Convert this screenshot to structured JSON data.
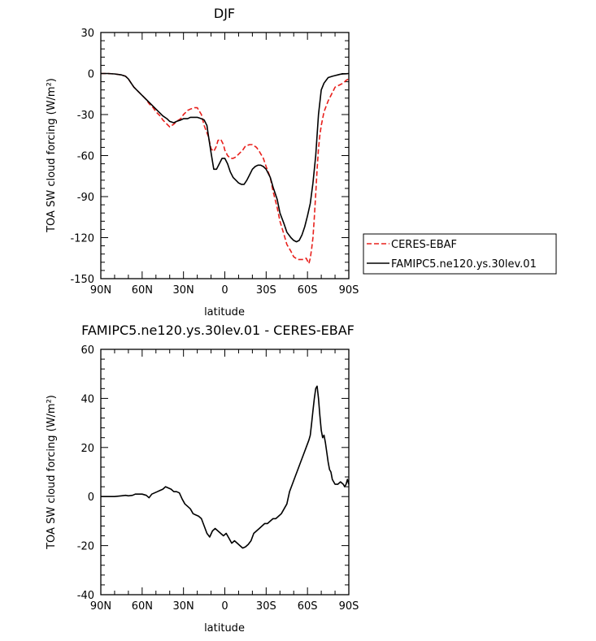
{
  "chart_data": [
    {
      "type": "line",
      "title": "DJF",
      "xlabel": "latitude",
      "ylabel": "TOA SW cloud forcing (W/m²)",
      "xlim": [
        90,
        -90
      ],
      "ylim": [
        -150,
        30
      ],
      "x_tick_values": [
        90,
        60,
        30,
        0,
        -30,
        -60,
        -90
      ],
      "x_tick_labels": [
        "90N",
        "60N",
        "30N",
        "0",
        "30S",
        "60S",
        "90S"
      ],
      "y_tick_values": [
        30,
        0,
        -30,
        -60,
        -90,
        -120,
        -150
      ],
      "y_tick_labels": [
        "30",
        "0",
        "-30",
        "-60",
        "-90",
        "-120",
        "-150"
      ],
      "legend_position": "right",
      "series": [
        {
          "name": "CERES-EBAF",
          "color": "#e8201c",
          "dash": "dashed",
          "x": [
            90,
            85,
            80,
            75,
            72,
            70,
            68,
            66,
            63,
            60,
            57,
            55,
            52,
            50,
            47,
            45,
            42,
            40,
            37,
            35,
            32,
            30,
            27,
            25,
            22,
            20,
            17,
            15,
            12,
            10,
            8,
            6,
            5,
            3,
            1,
            0,
            -2,
            -4,
            -6,
            -8,
            -10,
            -13,
            -15,
            -18,
            -20,
            -23,
            -25,
            -28,
            -30,
            -33,
            -35,
            -38,
            -40,
            -43,
            -45,
            -48,
            -50,
            -53,
            -55,
            -57,
            -59,
            -60,
            -61,
            -62,
            -63,
            -64,
            -65,
            -66,
            -67,
            -68,
            -69,
            -70,
            -72,
            -75,
            -78,
            -80,
            -82,
            -84,
            -86,
            -88,
            -90
          ],
          "y": [
            0,
            0,
            -0.3,
            -1,
            -2,
            -4,
            -7,
            -10,
            -13,
            -16,
            -19,
            -22,
            -25,
            -28,
            -31,
            -34,
            -37,
            -39,
            -37,
            -35,
            -33,
            -30,
            -27,
            -26,
            -25,
            -25,
            -30,
            -38,
            -46,
            -55,
            -57,
            -53,
            -49,
            -48,
            -52,
            -56,
            -60,
            -62,
            -62,
            -61,
            -59,
            -56,
            -53,
            -52,
            -52,
            -54,
            -57,
            -62,
            -68,
            -76,
            -86,
            -98,
            -108,
            -118,
            -125,
            -130,
            -134,
            -136,
            -136,
            -136,
            -135,
            -137,
            -139,
            -135,
            -128,
            -120,
            -105,
            -88,
            -70,
            -55,
            -45,
            -38,
            -28,
            -20,
            -14,
            -10,
            -9,
            -8,
            -7,
            -5,
            -4
          ]
        },
        {
          "name": "FAMIPC5.ne120.ys.30lev.01",
          "color": "#000000",
          "dash": "solid",
          "x": [
            90,
            85,
            80,
            75,
            72,
            70,
            68,
            66,
            63,
            60,
            57,
            55,
            52,
            50,
            47,
            45,
            42,
            40,
            37,
            35,
            32,
            30,
            27,
            25,
            22,
            20,
            17,
            15,
            13,
            12,
            10,
            8,
            6,
            4,
            2,
            0,
            -2,
            -4,
            -6,
            -8,
            -10,
            -12,
            -14,
            -16,
            -18,
            -20,
            -22,
            -24,
            -26,
            -28,
            -30,
            -33,
            -35,
            -38,
            -40,
            -43,
            -45,
            -48,
            -50,
            -52,
            -54,
            -56,
            -58,
            -60,
            -62,
            -64,
            -66,
            -68,
            -70,
            -72,
            -75,
            -78,
            -80,
            -82,
            -84,
            -86,
            -88,
            -90
          ],
          "y": [
            0,
            0,
            -0.3,
            -1,
            -2,
            -4,
            -7,
            -10,
            -13,
            -16,
            -19,
            -21,
            -24,
            -26,
            -29,
            -31,
            -33,
            -35,
            -36,
            -35,
            -34,
            -33,
            -33,
            -32,
            -32,
            -32,
            -33,
            -34,
            -38,
            -45,
            -58,
            -70,
            -70,
            -66,
            -62,
            -62,
            -66,
            -72,
            -76,
            -78,
            -80,
            -81,
            -81,
            -78,
            -74,
            -70,
            -68,
            -67,
            -67,
            -68,
            -70,
            -76,
            -83,
            -92,
            -102,
            -110,
            -116,
            -120,
            -122,
            -123,
            -122,
            -118,
            -112,
            -104,
            -95,
            -80,
            -60,
            -30,
            -12,
            -7,
            -3,
            -2,
            -1.5,
            -1,
            -0.5,
            -0.3,
            -0.2,
            0
          ]
        }
      ]
    },
    {
      "type": "line",
      "title": "FAMIPC5.ne120.ys.30lev.01 - CERES-EBAF",
      "xlabel": "latitude",
      "ylabel": "TOA SW cloud forcing (W/m²)",
      "xlim": [
        90,
        -90
      ],
      "ylim": [
        -40,
        60
      ],
      "x_tick_values": [
        90,
        60,
        30,
        0,
        -30,
        -60,
        -90
      ],
      "x_tick_labels": [
        "90N",
        "60N",
        "30N",
        "0",
        "30S",
        "60S",
        "90S"
      ],
      "y_tick_values": [
        60,
        40,
        20,
        0,
        -20,
        -40
      ],
      "y_tick_labels": [
        "60",
        "40",
        "20",
        "0",
        "-20",
        "-40"
      ],
      "series": [
        {
          "color": "#000000",
          "dash": "solid",
          "x": [
            90,
            85,
            80,
            75,
            72,
            70,
            67,
            65,
            62,
            60,
            57,
            55,
            53,
            51,
            49,
            47,
            45,
            43,
            41,
            39,
            37,
            35,
            33,
            31,
            29,
            27,
            25,
            23,
            21,
            19,
            17,
            15,
            13,
            11,
            9,
            7,
            5,
            3,
            1,
            -1,
            -3,
            -5,
            -7,
            -9,
            -11,
            -13,
            -15,
            -17,
            -19,
            -21,
            -23,
            -25,
            -27,
            -29,
            -31,
            -33,
            -35,
            -37,
            -39,
            -41,
            -43,
            -45,
            -47,
            -49,
            -51,
            -53,
            -55,
            -57,
            -59,
            -61,
            -62,
            -63,
            -64,
            -65,
            -66,
            -67,
            -68,
            -69,
            -70,
            -71,
            -72,
            -73,
            -74,
            -75,
            -76,
            -77,
            -78,
            -80,
            -82,
            -84,
            -86,
            -87,
            -88,
            -89,
            -90
          ],
          "y": [
            0,
            0,
            0,
            0.3,
            0.5,
            0.3,
            0.5,
            1,
            1,
            1,
            0.5,
            -0.5,
            1,
            1.5,
            2,
            2.5,
            3,
            4,
            3.5,
            3,
            2,
            2,
            1.5,
            -1,
            -3,
            -4,
            -5,
            -7,
            -7.5,
            -8,
            -9,
            -12,
            -15,
            -16.5,
            -14,
            -13,
            -14,
            -15,
            -16,
            -15,
            -17,
            -19,
            -18,
            -19,
            -20,
            -21,
            -20.5,
            -19.5,
            -18,
            -15,
            -14,
            -13,
            -12,
            -11,
            -11,
            -10,
            -9,
            -9,
            -8,
            -7,
            -5,
            -3,
            2,
            5,
            8,
            11,
            14,
            17,
            20,
            23,
            25,
            30,
            35,
            40,
            44,
            45,
            40,
            33,
            27,
            24,
            25,
            22,
            18,
            14,
            11,
            10,
            7,
            5,
            5,
            6,
            5,
            4,
            5,
            7,
            5
          ]
        }
      ]
    }
  ]
}
